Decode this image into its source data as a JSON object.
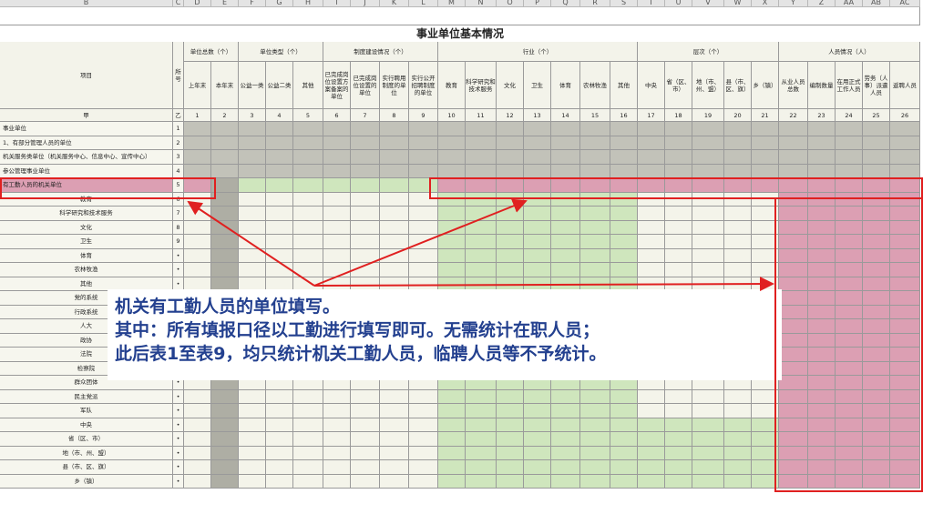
{
  "column_letters": [
    "B",
    "C",
    "D",
    "E",
    "F",
    "G",
    "H",
    "I",
    "J",
    "K",
    "L",
    "M",
    "N",
    "O",
    "P",
    "Q",
    "R",
    "S",
    "T",
    "U",
    "V",
    "W",
    "X",
    "Y",
    "Z",
    "AA",
    "AB",
    "AC"
  ],
  "title": "事业单位基本情况",
  "header": {
    "item": "项目",
    "seq": "所号",
    "groups": [
      "单位总数（个）",
      "单位类型（个）",
      "制度建设情况（个）",
      "行业（个）",
      "层次（个）",
      "人员情况（人）"
    ],
    "subheaders": [
      "上年末",
      "本年末",
      "公益一类",
      "公益二类",
      "其他",
      "已完成岗位设置方案备案的单位",
      "已完成岗位设置的单位",
      "实行聘用制度的单位",
      "实行公开招聘制度的单位",
      "教育",
      "科学研究和技术服务",
      "文化",
      "卫生",
      "体育",
      "农林牧渔",
      "其他",
      "中央",
      "省（区、市）",
      "地（市、州、盟）",
      "县（市、区、旗）",
      "乡（镇）",
      "从业人员总数",
      "编制数量",
      "在用正式工作人员",
      "劳务（人事）派遣人员",
      "返聘人员"
    ]
  },
  "column_numbers": [
    "甲",
    "乙",
    1,
    2,
    3,
    4,
    5,
    6,
    7,
    8,
    9,
    10,
    11,
    12,
    13,
    14,
    15,
    16,
    17,
    18,
    19,
    20,
    21,
    22,
    23,
    24,
    25,
    26
  ],
  "rows": [
    {
      "label": "事业单位",
      "no": 1
    },
    {
      "label": "1、有部分管理人员的单位",
      "no": 2
    },
    {
      "label": "机关服务类单位（机关服务中心、信息中心、宣传中心）",
      "no": 3
    },
    {
      "label": "参公管理事业单位",
      "no": 4
    },
    {
      "label": "有工勤人员的机关单位",
      "no": 5
    },
    {
      "label": "教育",
      "no": 6
    },
    {
      "label": "科学研究和技术服务",
      "no": 7
    },
    {
      "label": "文化",
      "no": 8
    },
    {
      "label": "卫生",
      "no": 9
    },
    {
      "label": "体育",
      "no": "•"
    },
    {
      "label": "农林牧渔",
      "no": "•"
    },
    {
      "label": "其他",
      "no": "•"
    },
    {
      "label": "党的系统",
      "no": "•"
    },
    {
      "label": "行政系统",
      "no": "•"
    },
    {
      "label": "人大",
      "no": "•"
    },
    {
      "label": "政协",
      "no": "•"
    },
    {
      "label": "法院",
      "no": "•"
    },
    {
      "label": "检察院",
      "no": "•"
    },
    {
      "label": "群众团体",
      "no": "•"
    },
    {
      "label": "民主党派",
      "no": "•"
    },
    {
      "label": "军队",
      "no": "•"
    },
    {
      "label": "中央",
      "no": "•"
    },
    {
      "label": "省（区、市）",
      "no": "•"
    },
    {
      "label": "地（市、州、盟）",
      "no": "•"
    },
    {
      "label": "县（市、区、旗）",
      "no": "•"
    },
    {
      "label": "乡（镇）",
      "no": "•"
    }
  ],
  "annotation": {
    "lines": [
      "机关有工勤人员的单位填写。",
      "其中：所有填报口径以工勤进行填写即可。无需统计在职人员；",
      "此后表1至表9，均只统计机关工勤人员，临聘人员等不予统计。"
    ]
  }
}
